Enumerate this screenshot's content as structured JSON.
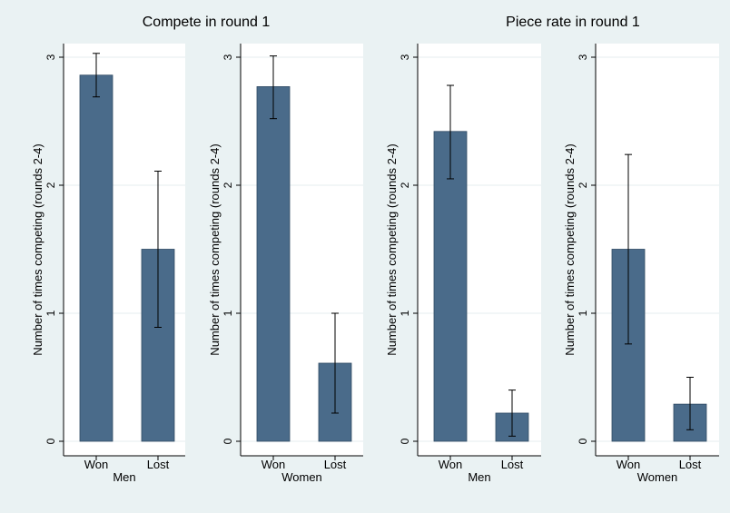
{
  "colors": {
    "background": "#eaf2f3",
    "panel": "#ffffff",
    "bar": "#4a6b8a",
    "bar_edge": "#2f4a63",
    "gridline": "#e6ecef"
  },
  "chart_data": [
    {
      "type": "bar",
      "group_title": "Compete in round 1",
      "xlabel": "Men",
      "ylabel": "Number of times competing (rounds 2-4)",
      "categories": [
        "Won",
        "Lost"
      ],
      "values": [
        2.86,
        1.5
      ],
      "error_low": [
        2.69,
        0.89
      ],
      "error_high": [
        3.03,
        2.11
      ],
      "ylim": [
        0,
        3
      ],
      "yticks": [
        0,
        1,
        2,
        3
      ],
      "grid": true
    },
    {
      "type": "bar",
      "group_title": "Compete in round 1",
      "xlabel": "Women",
      "ylabel": "Number of times competing (rounds 2-4)",
      "categories": [
        "Won",
        "Lost"
      ],
      "values": [
        2.77,
        0.61
      ],
      "error_low": [
        2.52,
        0.22
      ],
      "error_high": [
        3.01,
        1.0
      ],
      "ylim": [
        0,
        3
      ],
      "yticks": [
        0,
        1,
        2,
        3
      ],
      "grid": true
    },
    {
      "type": "bar",
      "group_title": "Piece rate in round 1",
      "xlabel": "Men",
      "ylabel": "Number of times competing (rounds 2-4)",
      "categories": [
        "Won",
        "Lost"
      ],
      "values": [
        2.42,
        0.22
      ],
      "error_low": [
        2.05,
        0.04
      ],
      "error_high": [
        2.78,
        0.4
      ],
      "ylim": [
        0,
        3
      ],
      "yticks": [
        0,
        1,
        2,
        3
      ],
      "grid": true
    },
    {
      "type": "bar",
      "group_title": "Piece rate in round 1",
      "xlabel": "Women",
      "ylabel": "Number of times competing (rounds 2-4)",
      "categories": [
        "Won",
        "Lost"
      ],
      "values": [
        1.5,
        0.29
      ],
      "error_low": [
        0.76,
        0.09
      ],
      "error_high": [
        2.24,
        0.5
      ],
      "ylim": [
        0,
        3
      ],
      "yticks": [
        0,
        1,
        2,
        3
      ],
      "grid": true
    }
  ],
  "titles": [
    "Compete in round 1",
    "Piece rate in round 1"
  ]
}
